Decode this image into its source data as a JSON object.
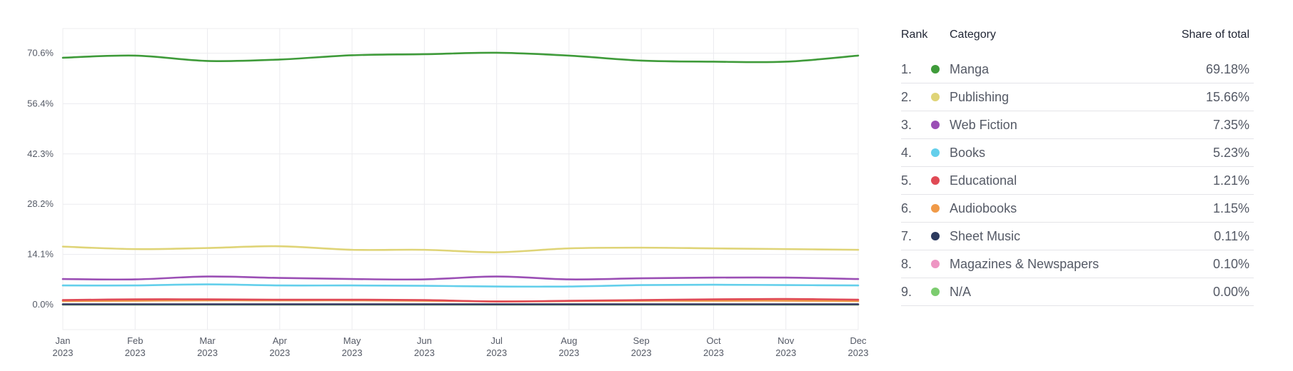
{
  "chart_data": {
    "type": "line",
    "x": [
      {
        "month": "Jan",
        "year": "2023"
      },
      {
        "month": "Feb",
        "year": "2023"
      },
      {
        "month": "Mar",
        "year": "2023"
      },
      {
        "month": "Apr",
        "year": "2023"
      },
      {
        "month": "May",
        "year": "2023"
      },
      {
        "month": "Jun",
        "year": "2023"
      },
      {
        "month": "Jul",
        "year": "2023"
      },
      {
        "month": "Aug",
        "year": "2023"
      },
      {
        "month": "Sep",
        "year": "2023"
      },
      {
        "month": "Oct",
        "year": "2023"
      },
      {
        "month": "Nov",
        "year": "2023"
      },
      {
        "month": "Dec",
        "year": "2023"
      }
    ],
    "y_ticks": [
      "0.0%",
      "14.1%",
      "28.2%",
      "42.3%",
      "56.4%",
      "70.6%"
    ],
    "y_tick_values": [
      0,
      14.1,
      28.2,
      42.3,
      56.4,
      70.6
    ],
    "ylim": [
      -7,
      77.5
    ],
    "grid": true,
    "legend": "table-right",
    "series": [
      {
        "name": "Manga",
        "color": "#3f9b3a",
        "values": [
          69.3,
          69.9,
          68.4,
          68.8,
          70.0,
          70.3,
          70.7,
          69.9,
          68.5,
          68.2,
          68.2,
          69.9
        ]
      },
      {
        "name": "Publishing",
        "color": "#dfd477",
        "values": [
          16.3,
          15.6,
          15.9,
          16.4,
          15.4,
          15.4,
          14.7,
          15.8,
          16.0,
          15.8,
          15.6,
          15.4
        ]
      },
      {
        "name": "Web Fiction",
        "color": "#9b4fb5",
        "values": [
          7.2,
          7.1,
          7.9,
          7.5,
          7.2,
          7.1,
          7.9,
          7.1,
          7.4,
          7.6,
          7.6,
          7.2
        ]
      },
      {
        "name": "Books",
        "color": "#63cfeb",
        "values": [
          5.4,
          5.4,
          5.7,
          5.4,
          5.4,
          5.3,
          5.1,
          5.1,
          5.5,
          5.6,
          5.5,
          5.4
        ]
      },
      {
        "name": "Educational",
        "color": "#e04a55",
        "values": [
          1.3,
          1.5,
          1.5,
          1.4,
          1.4,
          1.3,
          0.9,
          1.1,
          1.3,
          1.5,
          1.6,
          1.4
        ]
      },
      {
        "name": "Audiobooks",
        "color": "#f09a48",
        "values": [
          1.0,
          1.1,
          1.2,
          1.2,
          1.2,
          1.1,
          0.9,
          1.0,
          1.1,
          1.1,
          1.1,
          1.0
        ]
      },
      {
        "name": "Sheet Music",
        "color": "#2c3a5e",
        "values": [
          0.11,
          0.11,
          0.11,
          0.11,
          0.11,
          0.11,
          0.11,
          0.11,
          0.11,
          0.11,
          0.11,
          0.11
        ]
      },
      {
        "name": "Magazines & Newspapers",
        "color": "#ee95c3",
        "values": [
          0.1,
          0.1,
          0.1,
          0.1,
          0.1,
          0.1,
          0.1,
          0.1,
          0.1,
          0.1,
          0.1,
          0.1
        ]
      },
      {
        "name": "N/A",
        "color": "#7ccc6f",
        "values": [
          0,
          0,
          0,
          0,
          0,
          0,
          0,
          0,
          0,
          0,
          0,
          0
        ]
      }
    ]
  },
  "ranking": {
    "headers": {
      "rank": "Rank",
      "category": "Category",
      "share": "Share of total"
    },
    "rows": [
      {
        "rank": "1.",
        "category": "Manga",
        "share": "69.18%",
        "color": "#3f9b3a"
      },
      {
        "rank": "2.",
        "category": "Publishing",
        "share": "15.66%",
        "color": "#dfd477"
      },
      {
        "rank": "3.",
        "category": "Web Fiction",
        "share": "7.35%",
        "color": "#9b4fb5"
      },
      {
        "rank": "4.",
        "category": "Books",
        "share": "5.23%",
        "color": "#63cfeb"
      },
      {
        "rank": "5.",
        "category": "Educational",
        "share": "1.21%",
        "color": "#e04a55"
      },
      {
        "rank": "6.",
        "category": "Audiobooks",
        "share": "1.15%",
        "color": "#f09a48"
      },
      {
        "rank": "7.",
        "category": "Sheet Music",
        "share": "0.11%",
        "color": "#2c3a5e"
      },
      {
        "rank": "8.",
        "category": "Magazines & Newspapers",
        "share": "0.10%",
        "color": "#ee95c3"
      },
      {
        "rank": "9.",
        "category": "N/A",
        "share": "0.00%",
        "color": "#7ccc6f"
      }
    ]
  }
}
